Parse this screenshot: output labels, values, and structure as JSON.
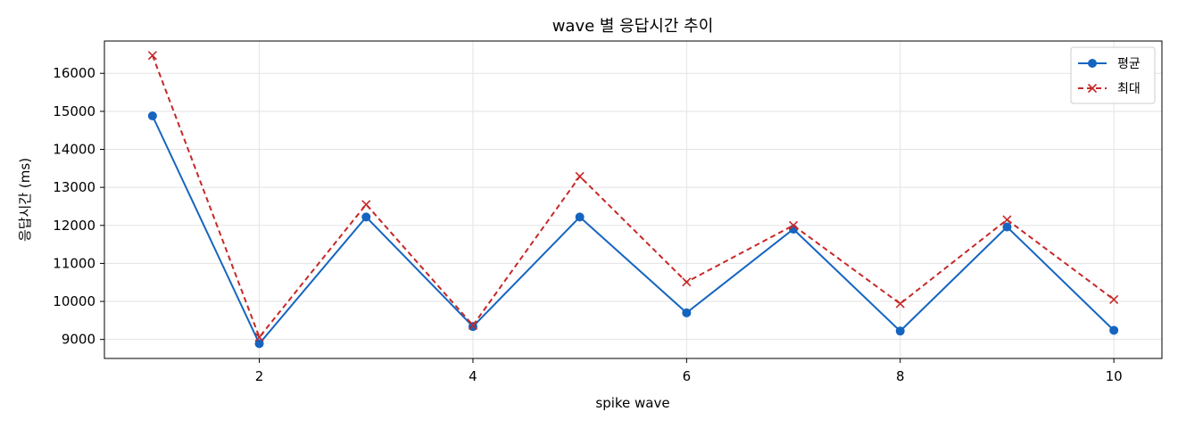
{
  "chart_data": {
    "type": "line",
    "title": "wave 별 응답시간 추이",
    "xlabel": "spike wave",
    "ylabel": "응답시간 (ms)",
    "x": [
      1,
      2,
      3,
      4,
      5,
      6,
      7,
      8,
      9,
      10
    ],
    "xticks": [
      2,
      4,
      6,
      8,
      10
    ],
    "yticks": [
      9000,
      10000,
      11000,
      12000,
      13000,
      14000,
      15000,
      16000
    ],
    "xlim": [
      0.55,
      10.45
    ],
    "ylim": [
      8500,
      16850
    ],
    "grid": true,
    "legend_position": "top-right",
    "series": [
      {
        "name": "평균",
        "color": "#1565c0",
        "style": "solid",
        "marker": "circle",
        "values": [
          14880,
          8890,
          12220,
          9340,
          12220,
          9700,
          11900,
          9220,
          11960,
          9240
        ]
      },
      {
        "name": "최대",
        "color": "#c62828",
        "style": "dashed",
        "marker": "x",
        "values": [
          16470,
          9060,
          12550,
          9370,
          13290,
          10510,
          12000,
          9940,
          12150,
          10050
        ]
      }
    ]
  }
}
